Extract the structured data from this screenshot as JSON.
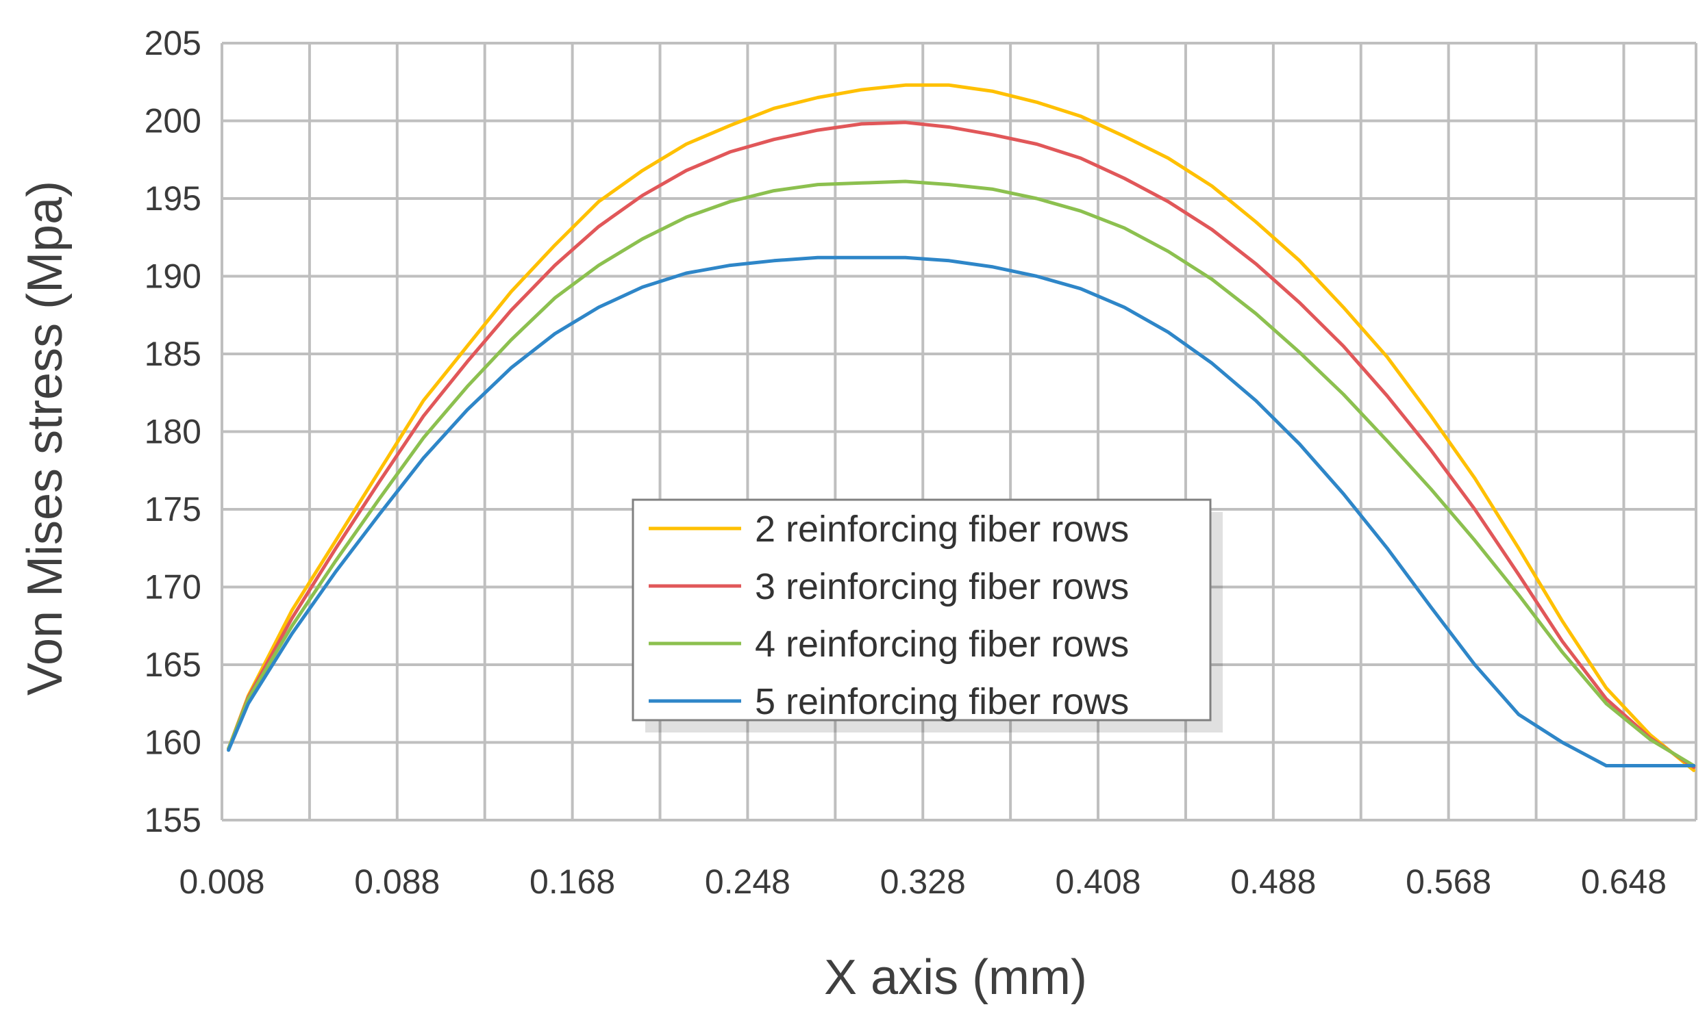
{
  "chart_data": {
    "type": "line",
    "title": "",
    "xlabel": "X axis (mm)",
    "ylabel": "Von Mises stress (Mpa)",
    "xlim": [
      0.008,
      0.681
    ],
    "ylim": [
      155,
      205
    ],
    "grid": true,
    "legend_position": "center",
    "x_ticks": [
      "0.008",
      "0.088",
      "0.168",
      "0.248",
      "0.328",
      "0.408",
      "0.488",
      "0.568",
      "0.648"
    ],
    "y_ticks": [
      "155",
      "160",
      "165",
      "170",
      "175",
      "180",
      "185",
      "190",
      "195",
      "200",
      "205"
    ],
    "x": [
      0.011,
      0.02,
      0.04,
      0.06,
      0.08,
      0.1,
      0.12,
      0.14,
      0.16,
      0.18,
      0.2,
      0.22,
      0.24,
      0.26,
      0.28,
      0.3,
      0.32,
      0.34,
      0.36,
      0.38,
      0.4,
      0.42,
      0.44,
      0.46,
      0.48,
      0.5,
      0.52,
      0.54,
      0.56,
      0.58,
      0.6,
      0.62,
      0.64,
      0.66,
      0.68
    ],
    "series": [
      {
        "name": "2 reinforcing fiber rows",
        "color": "#FFC000",
        "values": [
          159.6,
          163.0,
          168.5,
          173.0,
          177.5,
          182.0,
          185.5,
          189.0,
          192.0,
          194.8,
          196.8,
          198.5,
          199.7,
          200.8,
          201.5,
          202.0,
          202.3,
          202.3,
          201.9,
          201.2,
          200.3,
          199.0,
          197.6,
          195.8,
          193.5,
          191.0,
          188.0,
          184.8,
          181.0,
          177.0,
          172.5,
          167.8,
          163.5,
          160.5,
          158.2
        ]
      },
      {
        "name": "3 reinforcing fiber rows",
        "color": "#E15759",
        "values": [
          159.6,
          162.9,
          168.0,
          172.5,
          176.8,
          181.0,
          184.5,
          187.8,
          190.7,
          193.2,
          195.2,
          196.8,
          198.0,
          198.8,
          199.4,
          199.8,
          199.9,
          199.6,
          199.1,
          198.5,
          197.6,
          196.3,
          194.8,
          193.0,
          190.8,
          188.3,
          185.5,
          182.3,
          178.8,
          175.0,
          170.8,
          166.5,
          162.8,
          160.3,
          158.4
        ]
      },
      {
        "name": "4 reinforcing fiber rows",
        "color": "#8CC04F",
        "values": [
          159.6,
          162.8,
          167.5,
          171.7,
          175.7,
          179.6,
          182.9,
          185.9,
          188.6,
          190.7,
          192.4,
          193.8,
          194.8,
          195.5,
          195.9,
          196.0,
          196.1,
          195.9,
          195.6,
          195.0,
          194.2,
          193.1,
          191.6,
          189.8,
          187.6,
          185.1,
          182.4,
          179.4,
          176.3,
          173.0,
          169.5,
          165.8,
          162.5,
          160.2,
          158.5
        ]
      },
      {
        "name": "5 reinforcing fiber rows",
        "color": "#2E86C8",
        "values": [
          159.5,
          162.5,
          167.0,
          171.0,
          174.7,
          178.3,
          181.4,
          184.1,
          186.3,
          188.0,
          189.3,
          190.2,
          190.7,
          191.0,
          191.2,
          191.2,
          191.2,
          191.0,
          190.6,
          190.0,
          189.2,
          188.0,
          186.4,
          184.4,
          182.0,
          179.2,
          176.0,
          172.5,
          168.7,
          165.0,
          161.8,
          160.0,
          158.5,
          158.5,
          158.5
        ]
      }
    ]
  }
}
